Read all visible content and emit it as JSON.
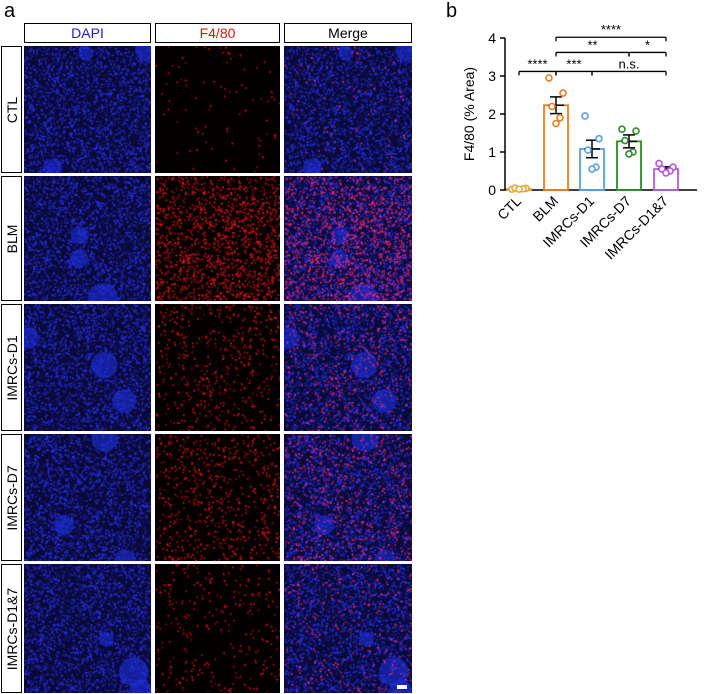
{
  "panel_a": {
    "letter": "a",
    "columns": [
      {
        "label": "DAPI",
        "color": "#2020d0"
      },
      {
        "label": "F4/80",
        "color": "#e01010"
      },
      {
        "label": "Merge",
        "color": "#000000"
      }
    ],
    "rows": [
      {
        "label": "CTL",
        "red_density": 0.05
      },
      {
        "label": "BLM",
        "red_density": 1.0
      },
      {
        "label": "IMRCs-D1",
        "red_density": 0.35
      },
      {
        "label": "IMRCs-D7",
        "red_density": 0.45
      },
      {
        "label": "IMRCs-D1&7",
        "red_density": 0.2
      }
    ]
  },
  "panel_b": {
    "letter": "b"
  },
  "chart_data": {
    "type": "bar",
    "ylabel": "F4/80 (% Area)",
    "ylim": [
      0,
      4
    ],
    "yticks": [
      "0",
      "1",
      "2",
      "3",
      "4"
    ],
    "categories": [
      "CTL",
      "BLM",
      "IMRCs-D1",
      "IMRCs-D7",
      "IMRCs-D1&7"
    ],
    "values": [
      0.03,
      2.23,
      1.08,
      1.28,
      0.55
    ],
    "sem": [
      0.01,
      0.22,
      0.23,
      0.17,
      0.06
    ],
    "colors": [
      "#e8a73a",
      "#ee7d22",
      "#5aa0e6",
      "#2e8b2e",
      "#b45ad6"
    ],
    "points": [
      [
        0.02,
        0.04,
        0.05,
        0.03,
        0.02
      ],
      [
        2.95,
        2.55,
        2.2,
        1.9,
        1.75
      ],
      [
        1.95,
        1.35,
        1.05,
        0.6,
        0.55
      ],
      [
        1.6,
        1.55,
        1.3,
        1.0,
        0.95
      ],
      [
        0.7,
        0.6,
        0.55,
        0.5,
        0.45
      ]
    ],
    "significance": [
      {
        "from": 1,
        "to": 4,
        "y": 4.02,
        "label": "****"
      },
      {
        "from": 1,
        "to": 3,
        "y": 3.62,
        "label": "**"
      },
      {
        "from": 3,
        "to": 4,
        "y": 3.62,
        "label": "*"
      },
      {
        "from": 0,
        "to": 1,
        "y": 3.12,
        "label": "****"
      },
      {
        "from": 1,
        "to": 2,
        "y": 3.12,
        "label": "***"
      },
      {
        "from": 2,
        "to": 4,
        "y": 3.12,
        "label": "n.s."
      }
    ]
  }
}
